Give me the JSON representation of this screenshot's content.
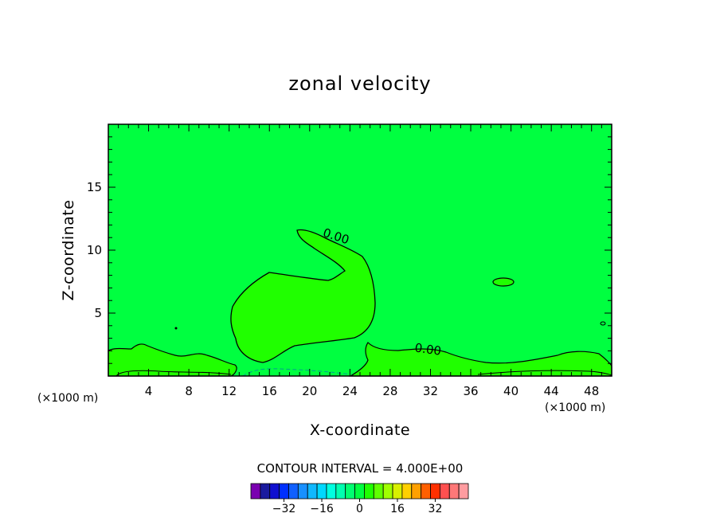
{
  "chart_data": {
    "type": "contour",
    "title": "zonal velocity",
    "xlabel": "X-coordinate",
    "ylabel": "Z-coordinate",
    "x_unit": "(×1000 m)",
    "y_unit": "(×1000 m)",
    "xlim": [
      0,
      50
    ],
    "ylim": [
      0,
      20
    ],
    "x_ticks": [
      4,
      8,
      12,
      16,
      20,
      24,
      28,
      32,
      36,
      40,
      44,
      48
    ],
    "y_ticks": [
      5,
      10,
      15
    ],
    "background_level_color": "#00ff40",
    "positive_region_color": "#20ff00",
    "contour_labels": [
      {
        "text": "0.00",
        "x": 22.5,
        "y": 10.8
      },
      {
        "text": "0.00",
        "x": 31.7,
        "y": 1.8
      }
    ],
    "contour_interval_label": "CONTOUR INTERVAL = 4.000E+00",
    "colorbar": {
      "colors": [
        "#7a00b0",
        "#1a1a9e",
        "#1010d0",
        "#0030ff",
        "#1060ff",
        "#1890ff",
        "#10b8ff",
        "#00d8ff",
        "#00ffe0",
        "#00ffb0",
        "#00ff70",
        "#00ff40",
        "#20ff00",
        "#60ff00",
        "#a0ff00",
        "#d8f000",
        "#ffd000",
        "#ffa000",
        "#ff6000",
        "#ff3000",
        "#ff5050",
        "#ff7878",
        "#ff9ca0"
      ],
      "tick_labels": [
        "-32",
        "-16",
        "0",
        "16",
        "32"
      ],
      "tick_values": [
        -32,
        -16,
        0,
        16,
        32
      ]
    }
  }
}
